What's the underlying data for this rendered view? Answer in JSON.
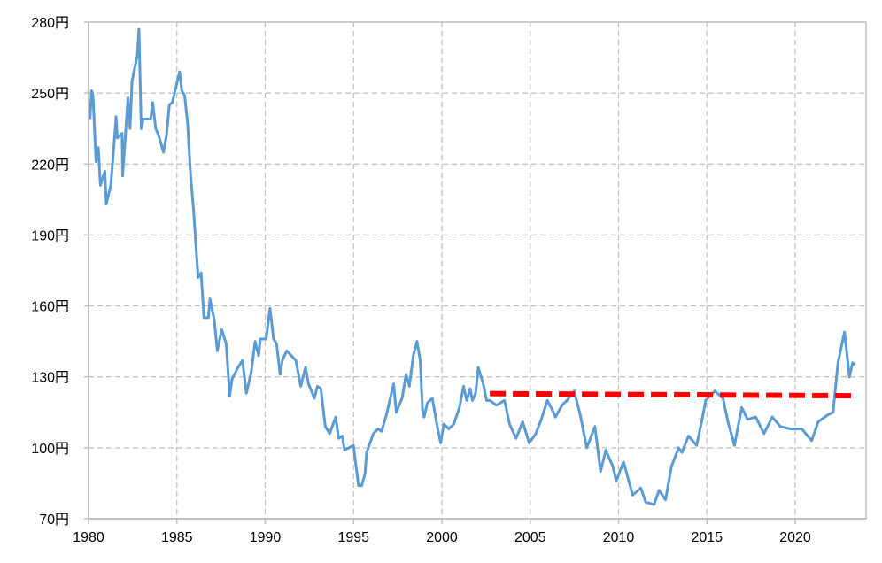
{
  "chart_data": {
    "type": "line",
    "title": "",
    "xlabel": "",
    "ylabel": "",
    "xlim": [
      1980,
      2023.9
    ],
    "ylim": [
      70,
      280
    ],
    "grid": true,
    "y_ticks": [
      280,
      250,
      220,
      190,
      160,
      130,
      100,
      70
    ],
    "y_tick_labels": [
      "280円",
      "250円",
      "220円",
      "190円",
      "160円",
      "130円",
      "100円",
      "70円"
    ],
    "x_ticks": [
      1980,
      1985,
      1990,
      1995,
      2000,
      2005,
      2010,
      2015,
      2020
    ],
    "x_tick_labels": [
      "1980",
      "1985",
      "1990",
      "1995",
      "2000",
      "2005",
      "2010",
      "2015",
      "2020"
    ],
    "colors": {
      "series": "#5B9BD5",
      "reference": "#FF0000",
      "grid": "#BFBFBF",
      "axis": "#BFBFBF"
    },
    "series": [
      {
        "x": [
          1980.08,
          1980.17,
          1980.25,
          1980.42,
          1980.55,
          1980.67,
          1980.92,
          1981.0,
          1981.26,
          1981.42,
          1981.56,
          1981.63,
          1981.9,
          1981.93,
          1982.23,
          1982.35,
          1982.46,
          1982.76,
          1982.85,
          1982.98,
          1983.1,
          1983.52,
          1983.63,
          1983.8,
          1983.97,
          1984.24,
          1984.41,
          1984.57,
          1984.74,
          1984.99,
          1985.16,
          1985.28,
          1985.44,
          1985.61,
          1985.78,
          1985.95,
          1986.2,
          1986.37,
          1986.53,
          1986.78,
          1986.87,
          1987.12,
          1987.29,
          1987.54,
          1987.79,
          1987.99,
          1988.12,
          1988.46,
          1988.71,
          1988.93,
          1989.21,
          1989.43,
          1989.63,
          1989.72,
          1990.05,
          1990.27,
          1990.47,
          1990.64,
          1990.84,
          1990.97,
          1991.22,
          1991.73,
          1992.01,
          1992.28,
          1992.45,
          1992.78,
          1992.95,
          1993.15,
          1993.4,
          1993.65,
          1993.99,
          1994.15,
          1994.36,
          1994.49,
          1994.99,
          1995.28,
          1995.46,
          1995.65,
          1995.74,
          1995.93,
          1996.12,
          1996.39,
          1996.58,
          1996.86,
          1997.08,
          1997.27,
          1997.42,
          1997.75,
          1997.97,
          1998.16,
          1998.38,
          1998.59,
          1998.77,
          1998.9,
          1998.99,
          1999.18,
          1999.46,
          1999.74,
          1999.93,
          2000.11,
          2000.39,
          2000.67,
          2000.99,
          2001.23,
          2001.41,
          2001.6,
          2001.73,
          2001.91,
          2002.06,
          2002.34,
          2002.53,
          2002.71,
          2003.09,
          2003.55,
          2003.83,
          2004.2,
          2004.57,
          2004.94,
          2005.32,
          2005.63,
          2005.97,
          2006.25,
          2006.43,
          2006.8,
          2007.08,
          2007.49,
          2007.83,
          2008.2,
          2008.66,
          2008.98,
          2009.28,
          2009.68,
          2009.87,
          2010.28,
          2010.8,
          2011.26,
          2011.54,
          2012.01,
          2012.29,
          2012.66,
          2012.99,
          2013.4,
          2013.59,
          2013.96,
          2014.42,
          2014.7,
          2014.93,
          2015.45,
          2015.91,
          2016.19,
          2016.56,
          2016.97,
          2017.3,
          2017.77,
          2018.23,
          2018.7,
          2019.16,
          2019.72,
          2020.37,
          2020.93,
          2021.3,
          2021.86,
          2022.14,
          2022.42,
          2022.79,
          2023.07,
          2023.25,
          2023.4
        ],
        "y": [
          239,
          251,
          249,
          221,
          227,
          211,
          217,
          203,
          211,
          226,
          240,
          231,
          233,
          215,
          248,
          235,
          255,
          266,
          277,
          235,
          239,
          239,
          246,
          235,
          232,
          225,
          232,
          245,
          246,
          254,
          259,
          251,
          249,
          237,
          215,
          200,
          172,
          174,
          155,
          155,
          163,
          154,
          141,
          150,
          144,
          122,
          129,
          134,
          137,
          123,
          132,
          145,
          139,
          146,
          146,
          159,
          146,
          144,
          131,
          137,
          141,
          137,
          126,
          134,
          127,
          121,
          126,
          125,
          109,
          106,
          113,
          104,
          105,
          99,
          101,
          84,
          84,
          89,
          98,
          102,
          106,
          108,
          107,
          114,
          121,
          127,
          115,
          121,
          131,
          126,
          139,
          145,
          137,
          116,
          113,
          119,
          121,
          109,
          102,
          110,
          108,
          110,
          117,
          126,
          120,
          125,
          120,
          123,
          134,
          127,
          120,
          120,
          118,
          120,
          110,
          104,
          111,
          102,
          106,
          112,
          120,
          116,
          113,
          118,
          120,
          124,
          114,
          100,
          109,
          90,
          99,
          92,
          86,
          94,
          80,
          83,
          77,
          76,
          82,
          78,
          92,
          100,
          98,
          105,
          101,
          111,
          120,
          124,
          121,
          111,
          101,
          117,
          112,
          113,
          106,
          113,
          109,
          108,
          108,
          103,
          111,
          114,
          115,
          136,
          149,
          130,
          136,
          135
        ]
      }
    ],
    "reference_line": {
      "x": [
        2002.71,
        2023.25
      ],
      "y": [
        122.9,
        122.0
      ],
      "style": "dashed"
    }
  }
}
